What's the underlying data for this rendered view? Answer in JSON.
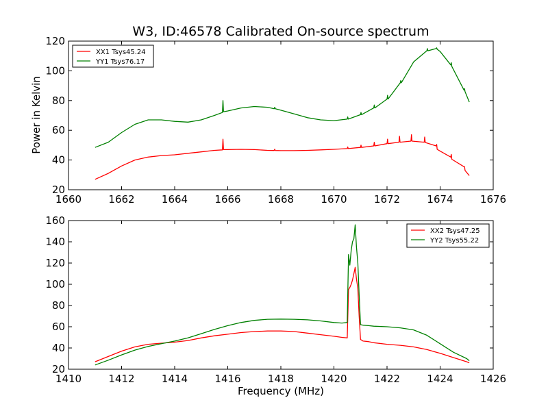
{
  "figure": {
    "title": "W3, ID:46578 Calibrated On-source spectrum",
    "shared_ylabel": "Power in Kelvin",
    "shared_xlabel": "Frequency (MHz)"
  },
  "chart_data": [
    {
      "type": "line",
      "title": "W3, ID:46578 Calibrated On-source spectrum",
      "ylabel": "Power in Kelvin",
      "xlabel": "",
      "xlim": [
        1660,
        1676
      ],
      "ylim": [
        20,
        120
      ],
      "xticks": [
        1660,
        1662,
        1664,
        1666,
        1668,
        1670,
        1672,
        1674,
        1676
      ],
      "yticks": [
        20,
        40,
        60,
        80,
        100,
        120
      ],
      "grid": false,
      "legend_position": "top-left",
      "series": [
        {
          "name": "XX1 Tsys45.24",
          "color": "#ff0000",
          "x": [
            1661.0,
            1661.5,
            1662.0,
            1662.5,
            1663.0,
            1663.5,
            1664.0,
            1664.5,
            1665.0,
            1665.5,
            1665.8,
            1665.82,
            1665.84,
            1666.0,
            1666.5,
            1667.0,
            1667.5,
            1667.75,
            1667.77,
            1667.79,
            1668.0,
            1668.5,
            1669.0,
            1669.5,
            1670.0,
            1670.5,
            1670.52,
            1670.54,
            1671.0,
            1671.02,
            1671.04,
            1671.5,
            1671.52,
            1671.54,
            1672.0,
            1672.02,
            1672.04,
            1672.45,
            1672.47,
            1672.49,
            1672.9,
            1672.92,
            1672.94,
            1673.4,
            1673.42,
            1673.44,
            1673.85,
            1673.87,
            1673.89,
            1674.0,
            1674.4,
            1674.42,
            1674.44,
            1674.9,
            1674.92,
            1674.94,
            1675.1
          ],
          "values": [
            27,
            31,
            36,
            40,
            42,
            43,
            43.5,
            44.5,
            45.5,
            46.5,
            46.8,
            54,
            47,
            47,
            47.2,
            47,
            46.5,
            46.4,
            47.3,
            46.4,
            46.3,
            46.3,
            46.5,
            46.8,
            47.2,
            47.7,
            48.8,
            47.7,
            48.5,
            50,
            48.5,
            49.5,
            52,
            49.5,
            51,
            54,
            51,
            52,
            56,
            52,
            52.7,
            57,
            52.7,
            52,
            55.5,
            51.8,
            49.5,
            50.5,
            47.2,
            46,
            42,
            43.8,
            40.5,
            35.5,
            35.5,
            33,
            29.5
          ]
        },
        {
          "name": "YY1 Tsys76.17",
          "color": "#008000",
          "x": [
            1661.0,
            1661.5,
            1662.0,
            1662.5,
            1663.0,
            1663.5,
            1664.0,
            1664.5,
            1665.0,
            1665.5,
            1665.8,
            1665.82,
            1665.84,
            1666.0,
            1666.5,
            1667.0,
            1667.5,
            1667.75,
            1667.77,
            1667.79,
            1668.0,
            1668.5,
            1669.0,
            1669.5,
            1670.0,
            1670.5,
            1670.52,
            1670.54,
            1671.0,
            1671.02,
            1671.04,
            1671.5,
            1671.52,
            1671.54,
            1672.0,
            1672.02,
            1672.04,
            1672.5,
            1672.52,
            1672.54,
            1673.0,
            1673.5,
            1673.52,
            1673.54,
            1673.85,
            1673.87,
            1673.89,
            1674.0,
            1674.4,
            1674.42,
            1674.44,
            1674.9,
            1674.92,
            1674.94,
            1675.1
          ],
          "values": [
            48.5,
            52,
            58.5,
            64,
            67,
            67,
            66,
            65.5,
            67,
            70,
            72,
            80,
            72.5,
            73,
            75,
            76,
            75.5,
            74.5,
            75.5,
            74.5,
            73.5,
            71,
            68.5,
            67,
            66.5,
            67.5,
            69,
            67.5,
            70.5,
            72,
            70.5,
            75,
            77,
            75,
            81,
            83.5,
            81,
            92,
            93.5,
            92,
            106,
            113.5,
            115,
            113.5,
            115,
            115.5,
            114.5,
            113,
            104,
            105.5,
            103,
            87,
            88,
            86,
            79
          ]
        }
      ]
    },
    {
      "type": "line",
      "title": "",
      "ylabel": "",
      "xlabel": "Frequency (MHz)",
      "xlim": [
        1410,
        1426
      ],
      "ylim": [
        20,
        160
      ],
      "xticks": [
        1410,
        1412,
        1414,
        1416,
        1418,
        1420,
        1422,
        1424,
        1426
      ],
      "yticks": [
        20,
        40,
        60,
        80,
        100,
        120,
        140,
        160
      ],
      "grid": false,
      "legend_position": "top-right",
      "series": [
        {
          "name": "XX2 Tsys47.25",
          "color": "#ff0000",
          "x": [
            1411.0,
            1411.5,
            1412.0,
            1412.5,
            1413.0,
            1413.5,
            1414.0,
            1414.5,
            1415.0,
            1415.5,
            1416.0,
            1416.5,
            1417.0,
            1417.5,
            1418.0,
            1418.5,
            1419.0,
            1419.5,
            1420.0,
            1420.3,
            1420.5,
            1420.55,
            1420.6,
            1420.65,
            1420.7,
            1420.75,
            1420.8,
            1420.85,
            1420.9,
            1420.95,
            1421.0,
            1421.1,
            1421.3,
            1421.5,
            1422.0,
            1422.5,
            1423.0,
            1423.5,
            1424.0,
            1424.5,
            1425.0,
            1425.1
          ],
          "values": [
            27,
            32,
            37,
            41,
            43.5,
            44.5,
            45.5,
            47,
            49.5,
            51.5,
            53,
            54.5,
            55.5,
            56,
            56,
            55.5,
            54,
            52.5,
            51,
            50,
            49.5,
            95,
            97,
            100,
            104,
            110,
            116,
            105,
            96,
            70,
            48,
            46.5,
            46,
            45,
            43.5,
            42.5,
            41,
            38.5,
            35,
            31,
            27,
            26
          ]
        },
        {
          "name": "YY2 Tsys55.22",
          "color": "#008000",
          "x": [
            1411.0,
            1411.5,
            1412.0,
            1412.5,
            1413.0,
            1413.5,
            1414.0,
            1414.5,
            1415.0,
            1415.5,
            1416.0,
            1416.5,
            1417.0,
            1417.5,
            1418.0,
            1418.5,
            1419.0,
            1419.5,
            1420.0,
            1420.3,
            1420.5,
            1420.55,
            1420.6,
            1420.65,
            1420.7,
            1420.75,
            1420.8,
            1420.85,
            1420.9,
            1420.95,
            1421.0,
            1421.1,
            1421.3,
            1421.5,
            1422.0,
            1422.5,
            1423.0,
            1423.5,
            1424.0,
            1424.5,
            1425.0,
            1425.1
          ],
          "values": [
            24,
            28.5,
            33.5,
            38,
            41.5,
            44,
            46.5,
            49.5,
            53.5,
            57.5,
            61,
            64,
            66,
            67,
            67.2,
            67,
            66.5,
            65.5,
            64,
            63.5,
            64,
            128,
            118,
            132,
            140,
            143,
            156,
            135,
            120,
            90,
            62,
            61.5,
            61,
            60.5,
            60,
            59,
            57,
            52,
            44,
            36,
            30,
            28
          ]
        }
      ]
    }
  ]
}
